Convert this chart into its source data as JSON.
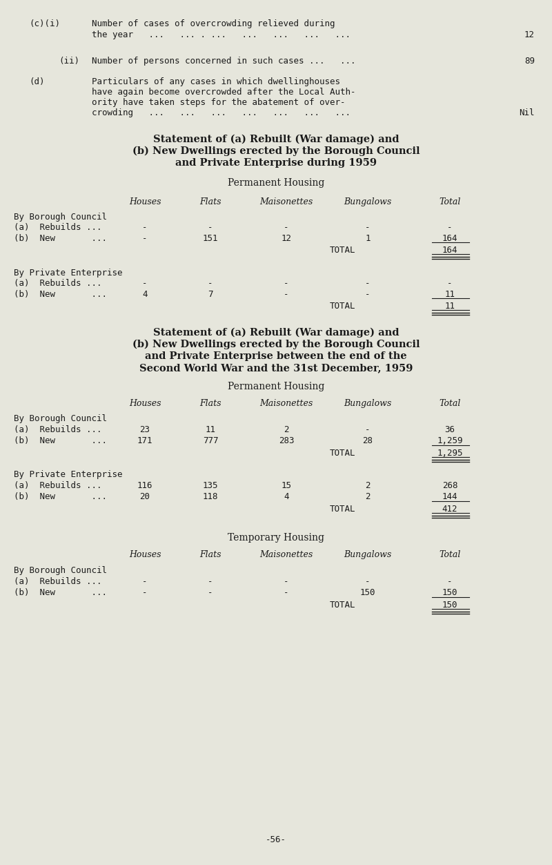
{
  "bg_color": "#e6e6dc",
  "text_color": "#1a1a1a",
  "page_number": "-56-",
  "col_headers": [
    "Houses",
    "Flats",
    "Maisonettes",
    "Bungalows",
    "Total"
  ],
  "title1_line1": "Statement of (a) Rebuilt (War damage) and",
  "title1_line2": "(b) New Dwellings erected by the Borough Council",
  "title1_line3": "and Private Enterprise during 1959",
  "subtitle1": "Permanent Housing",
  "table1_bc_rebuilds": [
    "-",
    "-",
    "-",
    "-",
    "-"
  ],
  "table1_bc_new": [
    "-",
    "151",
    "12",
    "1",
    "164"
  ],
  "table1_bc_total": "164",
  "table1_pe_rebuilds": [
    "-",
    "-",
    "-",
    "-",
    "-"
  ],
  "table1_pe_new": [
    "4",
    "7",
    "-",
    "-",
    "11"
  ],
  "table1_pe_total": "11",
  "title2_line1": "Statement of (a) Rebuilt (War damage) and",
  "title2_line2": "(b) New Dwellings erected by the Borough Council",
  "title2_line3": "and Private Enterprise between the end of the",
  "title2_line4": "Second World War and the 31st December, 1959",
  "subtitle2": "Permanent Housing",
  "table2_bc_rebuilds": [
    "23",
    "11",
    "2",
    "-",
    "36"
  ],
  "table2_bc_new": [
    "171",
    "777",
    "283",
    "28",
    "1,259"
  ],
  "table2_bc_total": "1,295",
  "table2_pe_rebuilds": [
    "116",
    "135",
    "15",
    "2",
    "268"
  ],
  "table2_pe_new": [
    "20",
    "118",
    "4",
    "2",
    "144"
  ],
  "table2_pe_total": "412",
  "subtitle3": "Temporary Housing",
  "table3_bc_rebuilds": [
    "-",
    "-",
    "-",
    "-",
    "-"
  ],
  "table3_bc_new": [
    "-",
    "-",
    "-",
    "150",
    "150"
  ],
  "table3_bc_total": "150"
}
